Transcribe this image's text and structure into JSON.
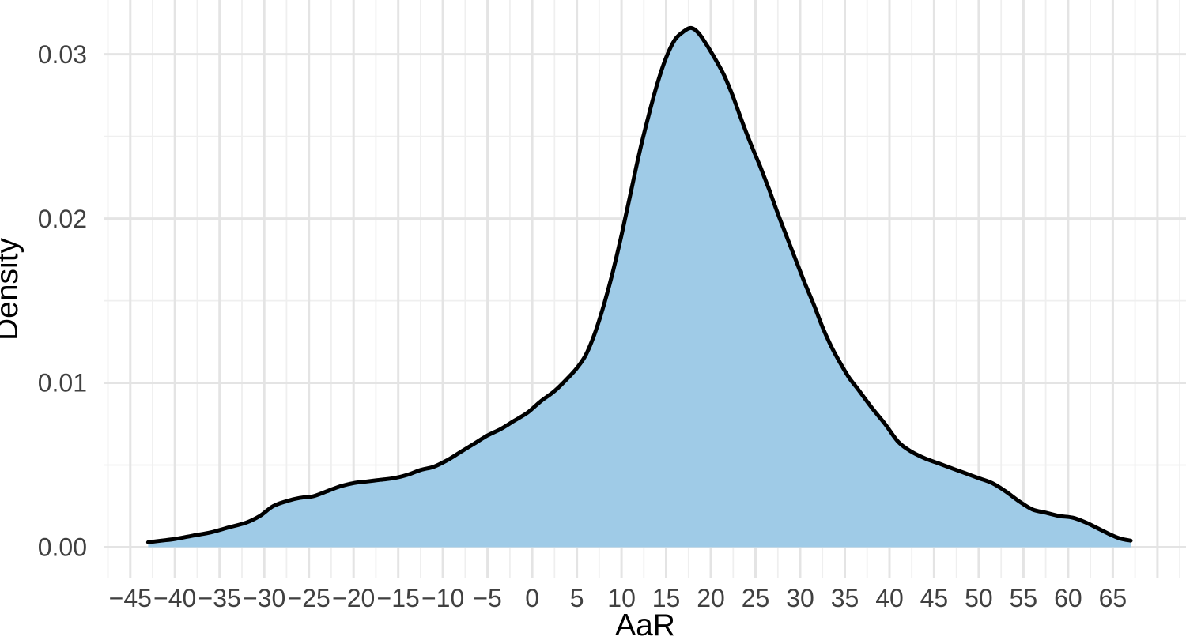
{
  "chart_data": {
    "type": "area",
    "title": "",
    "xlabel": "AaR",
    "ylabel": "Density",
    "xlim": [
      -47.9,
      73.2
    ],
    "ylim": [
      -0.0019,
      0.0333
    ],
    "grid": true,
    "legend": "none",
    "x_ticks": [
      -45,
      -40,
      -35,
      -30,
      -25,
      -20,
      -15,
      -10,
      -5,
      0,
      5,
      10,
      15,
      20,
      25,
      30,
      35,
      40,
      45,
      50,
      55,
      60,
      65
    ],
    "x_tick_labels": [
      "−45",
      "−40",
      "−35",
      "−30",
      "−25",
      "−20",
      "−15",
      "−10",
      "−5",
      "0",
      "5",
      "10",
      "15",
      "20",
      "25",
      "30",
      "35",
      "40",
      "45",
      "50",
      "55",
      "60",
      "65"
    ],
    "y_ticks": [
      0,
      0.01,
      0.02,
      0.03
    ],
    "y_tick_labels": [
      "0.00",
      "0.01",
      "0.02",
      "0.03"
    ],
    "x_grid_major": [
      -45,
      -40,
      -35,
      -30,
      -25,
      -20,
      -15,
      -10,
      -5,
      0,
      5,
      10,
      15,
      20,
      25,
      30,
      35,
      40,
      45,
      50,
      55,
      60,
      65,
      70
    ],
    "x_grid_minor": [
      -47.5,
      -42.5,
      -37.5,
      -32.5,
      -27.5,
      -22.5,
      -17.5,
      -12.5,
      -7.5,
      -2.5,
      2.5,
      7.5,
      12.5,
      17.5,
      22.5,
      27.5,
      32.5,
      37.5,
      42.5,
      47.5,
      52.5,
      57.5,
      62.5,
      67.5,
      72.5
    ],
    "y_grid_major": [
      0,
      0.01,
      0.02,
      0.03
    ],
    "y_grid_minor": [
      0.005,
      0.015,
      0.025
    ],
    "colors": {
      "fill": "#9FCBE7",
      "line": "#000000",
      "grid_major": "#E4E4E4",
      "grid_minor": "#EFEFEF",
      "tick_text": "#404040",
      "title_text": "#000000",
      "background": "#FFFFFF"
    },
    "series": [
      {
        "name": "density",
        "points": [
          [
            -43,
            0.0003
          ],
          [
            -41.5,
            0.0004
          ],
          [
            -40,
            0.0005
          ],
          [
            -38,
            0.0007
          ],
          [
            -36,
            0.0009
          ],
          [
            -34,
            0.0012
          ],
          [
            -32,
            0.0015
          ],
          [
            -30.5,
            0.0019
          ],
          [
            -29,
            0.0025
          ],
          [
            -27.5,
            0.0028
          ],
          [
            -26,
            0.003
          ],
          [
            -24.5,
            0.0031
          ],
          [
            -23,
            0.0034
          ],
          [
            -21.5,
            0.0037
          ],
          [
            -20,
            0.0039
          ],
          [
            -18.5,
            0.004
          ],
          [
            -17,
            0.0041
          ],
          [
            -15.5,
            0.0042
          ],
          [
            -14,
            0.0044
          ],
          [
            -12.5,
            0.0047
          ],
          [
            -11,
            0.0049
          ],
          [
            -9.5,
            0.0053
          ],
          [
            -8,
            0.0058
          ],
          [
            -6.5,
            0.0063
          ],
          [
            -5,
            0.0068
          ],
          [
            -3.5,
            0.0072
          ],
          [
            -2,
            0.0077
          ],
          [
            -0.5,
            0.0082
          ],
          [
            1,
            0.0089
          ],
          [
            2.5,
            0.0095
          ],
          [
            4,
            0.0103
          ],
          [
            5,
            0.0109
          ],
          [
            6,
            0.0117
          ],
          [
            7,
            0.013
          ],
          [
            8,
            0.0147
          ],
          [
            9,
            0.0167
          ],
          [
            10,
            0.019
          ],
          [
            11,
            0.0215
          ],
          [
            12,
            0.024
          ],
          [
            13,
            0.0262
          ],
          [
            14,
            0.0282
          ],
          [
            15,
            0.0298
          ],
          [
            16,
            0.0309
          ],
          [
            17,
            0.0314
          ],
          [
            17.8,
            0.0316
          ],
          [
            18.6,
            0.0313
          ],
          [
            19.5,
            0.0306
          ],
          [
            20.5,
            0.0297
          ],
          [
            21.5,
            0.0287
          ],
          [
            22.5,
            0.0274
          ],
          [
            23.5,
            0.0259
          ],
          [
            24.5,
            0.0245
          ],
          [
            25.5,
            0.0232
          ],
          [
            26.5,
            0.0218
          ],
          [
            27.5,
            0.0203
          ],
          [
            28.5,
            0.0189
          ],
          [
            29.5,
            0.0175
          ],
          [
            30.5,
            0.0161
          ],
          [
            31.5,
            0.0148
          ],
          [
            32.5,
            0.0134
          ],
          [
            33.5,
            0.0122
          ],
          [
            34.5,
            0.0112
          ],
          [
            35.5,
            0.0103
          ],
          [
            36.5,
            0.0096
          ],
          [
            38,
            0.0085
          ],
          [
            39.5,
            0.0075
          ],
          [
            41,
            0.0064
          ],
          [
            42.5,
            0.0058
          ],
          [
            44,
            0.0054
          ],
          [
            45.5,
            0.0051
          ],
          [
            47,
            0.0048
          ],
          [
            48.5,
            0.0045
          ],
          [
            50,
            0.0042
          ],
          [
            51.5,
            0.0039
          ],
          [
            53,
            0.0034
          ],
          [
            54.5,
            0.0028
          ],
          [
            56,
            0.0023
          ],
          [
            57.5,
            0.0021
          ],
          [
            59,
            0.0019
          ],
          [
            60.5,
            0.0018
          ],
          [
            62,
            0.0015
          ],
          [
            63.5,
            0.0011
          ],
          [
            65,
            0.0007
          ],
          [
            66,
            0.0005
          ],
          [
            67,
            0.0004
          ]
        ]
      }
    ]
  }
}
